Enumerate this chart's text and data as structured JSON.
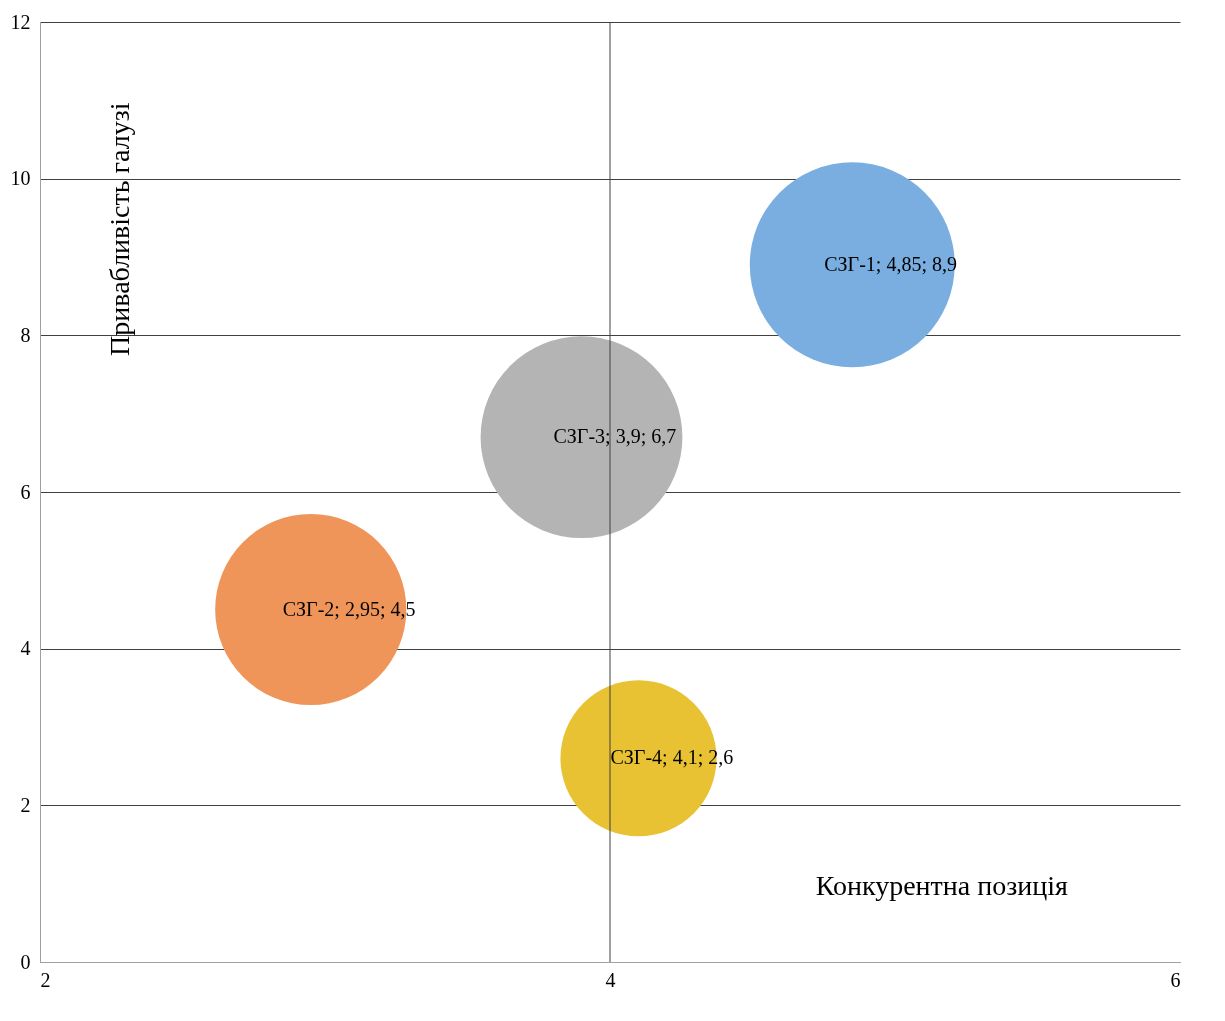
{
  "chart_data": {
    "type": "bubble",
    "xlabel": "Конкурентна позиція",
    "ylabel": "Привабливість галузі",
    "series": [
      {
        "color": "#7aaee0",
        "x": [
          4.85
        ],
        "values": [
          8.9
        ],
        "sizes": [
          1
        ],
        "value_labels": [
          "СЗГ-1; 4,85; 8,9"
        ]
      },
      {
        "color": "#f0955a",
        "x": [
          2.95
        ],
        "values": [
          4.5
        ],
        "sizes": [
          0.87
        ],
        "value_labels": [
          "СЗГ-2; 2,95; 4,5"
        ]
      },
      {
        "color": "#b4b4b4",
        "x": [
          3.9
        ],
        "values": [
          6.7
        ],
        "sizes": [
          0.97
        ],
        "value_labels": [
          "СЗГ-3; 3,9; 6,7"
        ]
      },
      {
        "color": "#e8c232",
        "x": [
          4.1
        ],
        "values": [
          2.6
        ],
        "sizes": [
          0.58
        ],
        "value_labels": [
          "СЗГ-4; 4,1; 2,6"
        ]
      }
    ],
    "xlim": [
      2,
      6
    ],
    "xticks": [
      2,
      4,
      6
    ],
    "ylim": [
      0,
      12
    ],
    "yticks": [
      0,
      2,
      4,
      6,
      8,
      10,
      12
    ],
    "grid": "y",
    "legend": false,
    "ref_lines": [
      {
        "axis": "x",
        "value": 4,
        "color": "#404040"
      }
    ]
  }
}
